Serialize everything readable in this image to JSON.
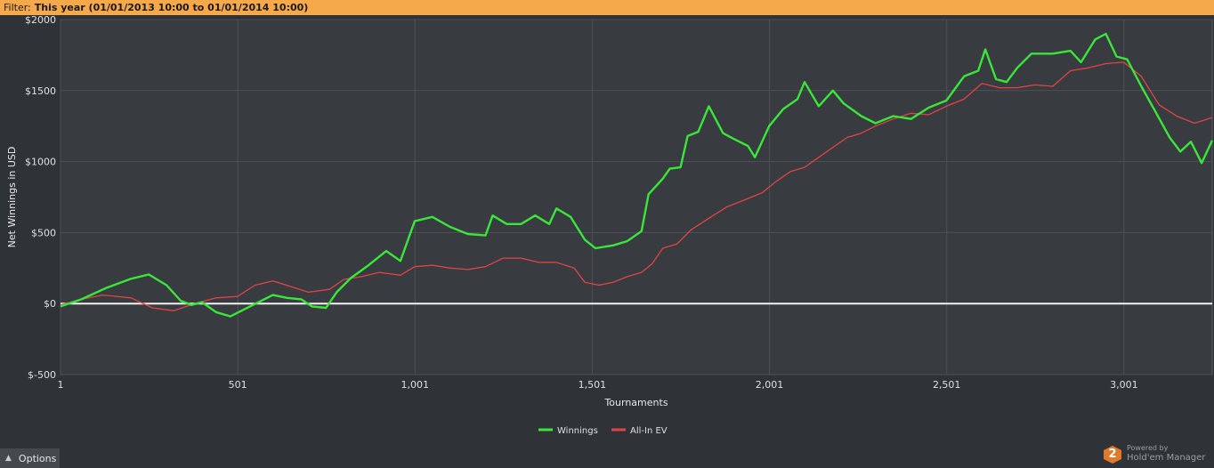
{
  "filter": {
    "label": "Filter:",
    "value": "This year (01/01/2013 10:00 to 01/01/2014 10:00)"
  },
  "chart_data": {
    "type": "line",
    "xlabel": "Tournaments",
    "ylabel": "Net Winnings in USD",
    "xlim": [
      1,
      3250
    ],
    "ylim": [
      -500,
      2000
    ],
    "x_ticks": [
      1,
      501,
      1001,
      1501,
      2001,
      2501,
      3001
    ],
    "x_tick_labels": [
      "1",
      "501",
      "1,001",
      "1,501",
      "2,001",
      "2,501",
      "3,001"
    ],
    "y_ticks": [
      -500,
      0,
      500,
      1000,
      1500,
      2000
    ],
    "y_tick_labels": [
      "$-500",
      "$0",
      "$500",
      "$1000",
      "$1500",
      "$2000"
    ],
    "grid": true,
    "legend_position": "bottom-center",
    "series": [
      {
        "name": "Winnings",
        "color": "#39e639",
        "points": [
          [
            1,
            -20
          ],
          [
            60,
            30
          ],
          [
            130,
            110
          ],
          [
            200,
            175
          ],
          [
            250,
            205
          ],
          [
            300,
            130
          ],
          [
            340,
            20
          ],
          [
            370,
            -10
          ],
          [
            400,
            10
          ],
          [
            440,
            -60
          ],
          [
            480,
            -90
          ],
          [
            520,
            -40
          ],
          [
            560,
            10
          ],
          [
            600,
            60
          ],
          [
            640,
            40
          ],
          [
            680,
            30
          ],
          [
            710,
            -20
          ],
          [
            750,
            -30
          ],
          [
            780,
            80
          ],
          [
            820,
            180
          ],
          [
            870,
            270
          ],
          [
            920,
            370
          ],
          [
            960,
            300
          ],
          [
            1000,
            580
          ],
          [
            1050,
            610
          ],
          [
            1100,
            540
          ],
          [
            1150,
            490
          ],
          [
            1200,
            480
          ],
          [
            1220,
            620
          ],
          [
            1260,
            560
          ],
          [
            1300,
            560
          ],
          [
            1340,
            620
          ],
          [
            1380,
            560
          ],
          [
            1400,
            670
          ],
          [
            1440,
            610
          ],
          [
            1480,
            450
          ],
          [
            1510,
            390
          ],
          [
            1560,
            410
          ],
          [
            1600,
            440
          ],
          [
            1640,
            510
          ],
          [
            1660,
            770
          ],
          [
            1700,
            880
          ],
          [
            1720,
            950
          ],
          [
            1750,
            960
          ],
          [
            1770,
            1180
          ],
          [
            1800,
            1210
          ],
          [
            1830,
            1390
          ],
          [
            1870,
            1200
          ],
          [
            1900,
            1160
          ],
          [
            1940,
            1110
          ],
          [
            1960,
            1030
          ],
          [
            2000,
            1250
          ],
          [
            2040,
            1370
          ],
          [
            2080,
            1440
          ],
          [
            2100,
            1560
          ],
          [
            2140,
            1390
          ],
          [
            2180,
            1500
          ],
          [
            2210,
            1410
          ],
          [
            2260,
            1320
          ],
          [
            2300,
            1270
          ],
          [
            2350,
            1320
          ],
          [
            2400,
            1300
          ],
          [
            2450,
            1380
          ],
          [
            2500,
            1430
          ],
          [
            2550,
            1600
          ],
          [
            2590,
            1640
          ],
          [
            2610,
            1790
          ],
          [
            2640,
            1580
          ],
          [
            2670,
            1560
          ],
          [
            2700,
            1660
          ],
          [
            2740,
            1760
          ],
          [
            2800,
            1760
          ],
          [
            2850,
            1780
          ],
          [
            2880,
            1700
          ],
          [
            2920,
            1860
          ],
          [
            2950,
            1900
          ],
          [
            2980,
            1740
          ],
          [
            3010,
            1720
          ],
          [
            3050,
            1530
          ],
          [
            3090,
            1350
          ],
          [
            3130,
            1170
          ],
          [
            3160,
            1070
          ],
          [
            3190,
            1140
          ],
          [
            3220,
            990
          ],
          [
            3250,
            1150
          ]
        ]
      },
      {
        "name": "All-In EV",
        "color": "#e04545",
        "points": [
          [
            1,
            -10
          ],
          [
            60,
            30
          ],
          [
            120,
            60
          ],
          [
            200,
            40
          ],
          [
            260,
            -30
          ],
          [
            320,
            -50
          ],
          [
            380,
            0
          ],
          [
            440,
            40
          ],
          [
            500,
            50
          ],
          [
            550,
            130
          ],
          [
            600,
            160
          ],
          [
            650,
            120
          ],
          [
            700,
            80
          ],
          [
            760,
            100
          ],
          [
            800,
            170
          ],
          [
            850,
            190
          ],
          [
            900,
            220
          ],
          [
            960,
            200
          ],
          [
            1000,
            260
          ],
          [
            1050,
            270
          ],
          [
            1100,
            250
          ],
          [
            1150,
            240
          ],
          [
            1200,
            260
          ],
          [
            1250,
            320
          ],
          [
            1300,
            320
          ],
          [
            1350,
            290
          ],
          [
            1400,
            290
          ],
          [
            1450,
            250
          ],
          [
            1480,
            150
          ],
          [
            1520,
            130
          ],
          [
            1560,
            150
          ],
          [
            1600,
            190
          ],
          [
            1640,
            220
          ],
          [
            1670,
            280
          ],
          [
            1700,
            390
          ],
          [
            1740,
            420
          ],
          [
            1780,
            520
          ],
          [
            1830,
            600
          ],
          [
            1880,
            680
          ],
          [
            1940,
            740
          ],
          [
            1980,
            780
          ],
          [
            2020,
            860
          ],
          [
            2060,
            930
          ],
          [
            2100,
            960
          ],
          [
            2140,
            1030
          ],
          [
            2180,
            1100
          ],
          [
            2220,
            1170
          ],
          [
            2260,
            1200
          ],
          [
            2300,
            1250
          ],
          [
            2350,
            1300
          ],
          [
            2400,
            1340
          ],
          [
            2450,
            1330
          ],
          [
            2500,
            1390
          ],
          [
            2550,
            1440
          ],
          [
            2600,
            1550
          ],
          [
            2650,
            1520
          ],
          [
            2700,
            1520
          ],
          [
            2750,
            1540
          ],
          [
            2800,
            1530
          ],
          [
            2850,
            1640
          ],
          [
            2900,
            1660
          ],
          [
            2950,
            1690
          ],
          [
            3000,
            1700
          ],
          [
            3050,
            1600
          ],
          [
            3100,
            1400
          ],
          [
            3150,
            1320
          ],
          [
            3200,
            1270
          ],
          [
            3250,
            1310
          ]
        ]
      }
    ]
  },
  "options_label": "Options",
  "powered_by": {
    "by": "Powered by",
    "name": "Hold'em Manager",
    "logo_text": "2"
  }
}
